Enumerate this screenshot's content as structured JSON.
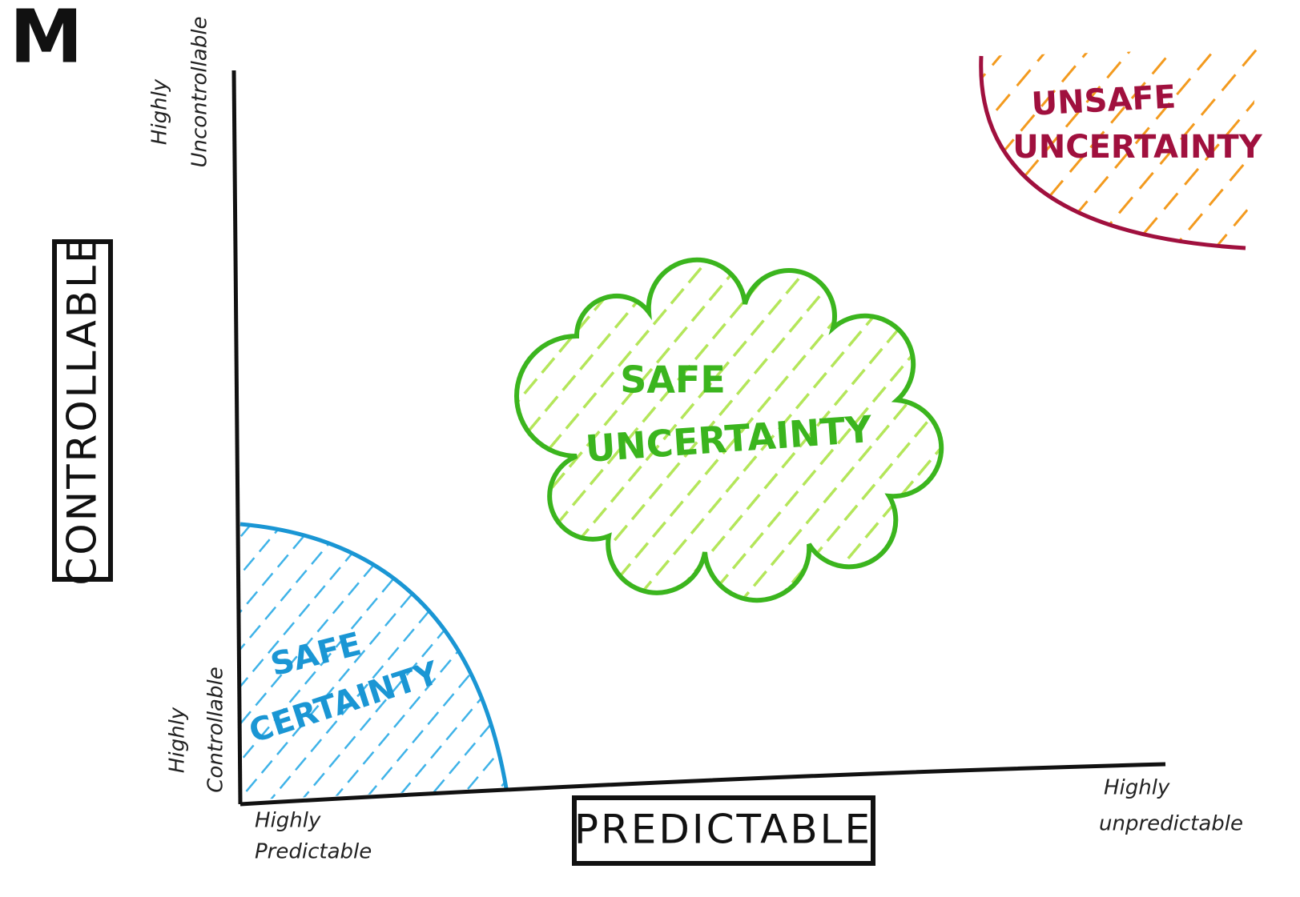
{
  "title": "M",
  "y_axis": {
    "label": "CONTROLLABLE",
    "top": [
      "Highly",
      "Uncontrollable"
    ],
    "bottom": [
      "Highly",
      "Controllable"
    ]
  },
  "x_axis": {
    "label": "PREDICTABLE",
    "left": [
      "Highly",
      "Predictable"
    ],
    "right": [
      "Highly",
      "unpredictable"
    ]
  },
  "regions": [
    {
      "label": [
        "SAFE",
        "CERTAINTY"
      ]
    },
    {
      "label": [
        "SAFE",
        "UNCERTAINTY"
      ]
    },
    {
      "label": [
        "UNSAFE",
        "UNCERTAINTY"
      ]
    }
  ]
}
